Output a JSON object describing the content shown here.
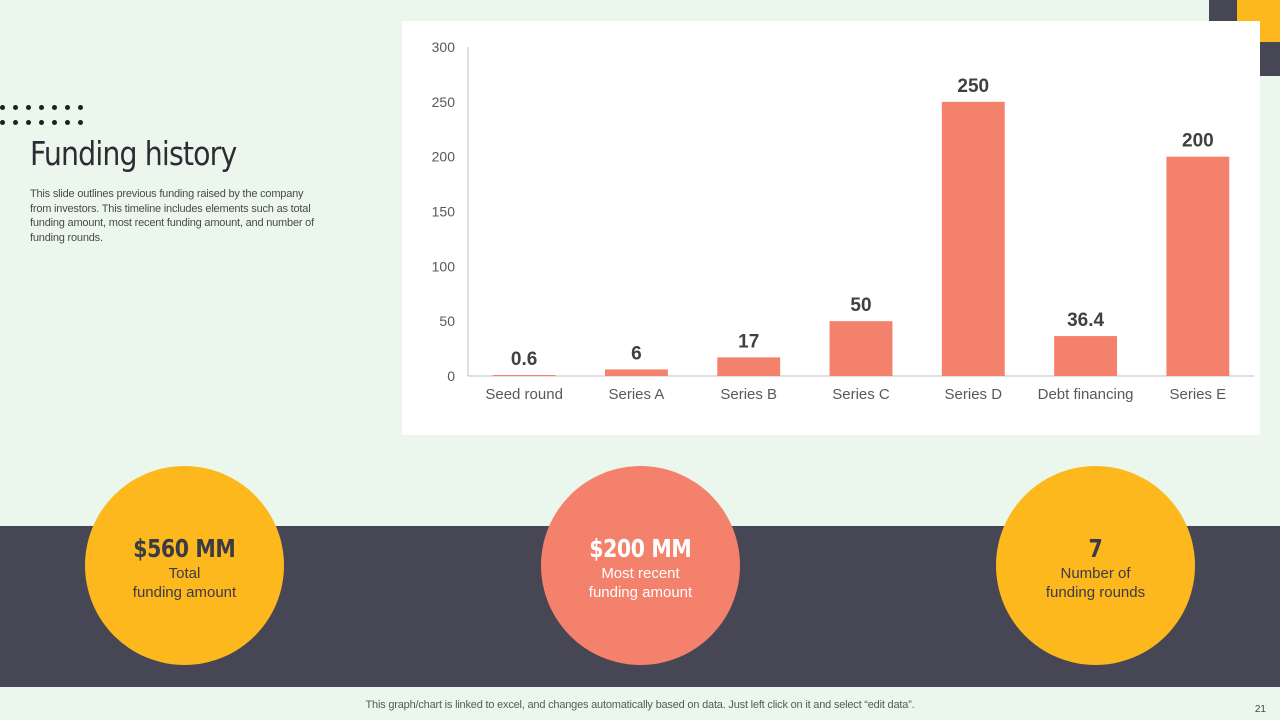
{
  "slide": {
    "title": "Funding history",
    "description": "This slide outlines previous funding raised by the company from investors. This timeline includes elements such as total funding amount, most recent funding amount, and number of funding rounds.",
    "footer_note": "This graph/chart is linked to excel,  and changes automatically based on data. Just left click on it and select “edit data”.",
    "page_number": "21"
  },
  "colors": {
    "background": "#ebf7ec",
    "bar": "#f4816b",
    "yellow": "#fdb81e",
    "dark": "#474654"
  },
  "kpis": [
    {
      "value": "$560 MM",
      "line1": "Total",
      "line2": "funding amount"
    },
    {
      "value": "$200 MM",
      "line1": "Most recent",
      "line2": "funding amount"
    },
    {
      "value": "7",
      "line1": "Number of",
      "line2": "funding rounds"
    }
  ],
  "chart_data": {
    "type": "bar",
    "categories": [
      "Seed round",
      "Series A",
      "Series B",
      "Series C",
      "Series D",
      "Debt financing",
      "Series E"
    ],
    "values": [
      0.6,
      6,
      17,
      50,
      250,
      36.4,
      200
    ],
    "data_labels": [
      "0.6",
      "6",
      "17",
      "50",
      "250",
      "36.4",
      "200"
    ],
    "ylim": [
      0,
      300
    ],
    "yticks": [
      0,
      50,
      100,
      150,
      200,
      250,
      300
    ],
    "title": "",
    "xlabel": "",
    "ylabel": "",
    "grid": false,
    "legend": "none"
  }
}
